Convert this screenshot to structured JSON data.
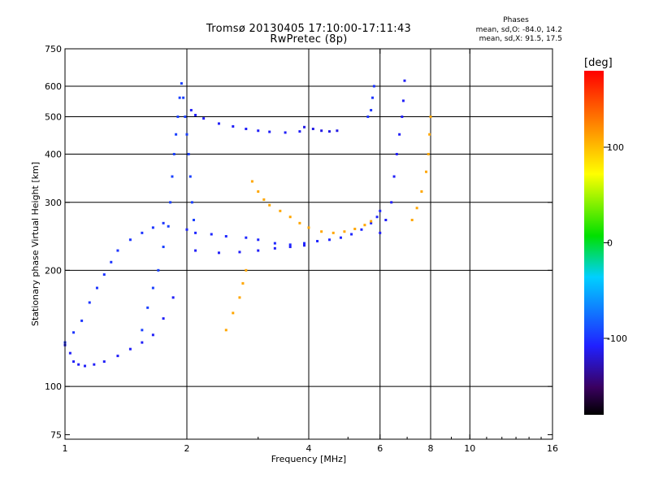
{
  "header": {
    "title_line1": "Tromsø 20130405 17:10:00-17:11:43",
    "title_line2": "RwPretec (8p)",
    "phases_heading": "Phases",
    "phases_line1": "mean, sd,O: -84.0, 14.2",
    "phases_line2": "mean, sd,X:  91.5, 17.5"
  },
  "colorbar": {
    "label": "[deg]",
    "ticks": [
      "100",
      "0",
      "-100"
    ],
    "tick_values": [
      100,
      0,
      -100
    ],
    "range": [
      -180,
      180
    ]
  },
  "colors": {
    "blue_trace": "#1030e0",
    "yellow_trace": "#e8e020",
    "grid": "#000000"
  },
  "chart_data": {
    "type": "scatter",
    "title": "Tromsø 20130405 17:10:00-17:11:43",
    "subtitle": "RwPretec (8p)",
    "xlabel": "Frequency [MHz]",
    "ylabel": "Stationary phase Virtual Height [km]",
    "xscale": "log",
    "yscale": "log",
    "xlim": [
      1,
      16
    ],
    "ylim": [
      73,
      750
    ],
    "xticks": [
      1,
      2,
      4,
      6,
      8,
      10,
      16
    ],
    "xtick_labels": [
      "1",
      "2",
      "4",
      "6",
      "8",
      "10",
      "16"
    ],
    "yticks": [
      75,
      100,
      200,
      300,
      400,
      500,
      600,
      750
    ],
    "ytick_labels": [
      "75",
      "100",
      "200",
      "300",
      "400",
      "500",
      "600",
      "750"
    ],
    "x_gridlines": [
      2,
      4,
      6,
      8,
      10
    ],
    "y_gridlines": [
      100,
      200,
      300,
      400,
      500,
      600
    ],
    "color_scale": "phase [deg]",
    "series": [
      {
        "points": [
          [
            1.0,
            128
          ],
          [
            1.03,
            122
          ],
          [
            1.05,
            116
          ],
          [
            1.08,
            114
          ],
          [
            1.12,
            113
          ],
          [
            1.18,
            114
          ],
          [
            1.25,
            116
          ],
          [
            1.35,
            120
          ],
          [
            1.45,
            125
          ],
          [
            1.55,
            130
          ],
          [
            1.65,
            136
          ],
          [
            1.75,
            150
          ],
          [
            1.85,
            170
          ]
        ],
        "phase": -110
      },
      {
        "points": [
          [
            1.0,
            130
          ],
          [
            1.05,
            138
          ],
          [
            1.1,
            148
          ],
          [
            1.15,
            165
          ],
          [
            1.2,
            180
          ],
          [
            1.25,
            195
          ],
          [
            1.3,
            210
          ],
          [
            1.35,
            225
          ],
          [
            1.45,
            240
          ],
          [
            1.55,
            250
          ],
          [
            1.65,
            258
          ],
          [
            1.75,
            265
          ]
        ],
        "phase": -100
      },
      {
        "points": [
          [
            1.55,
            140
          ],
          [
            1.6,
            160
          ],
          [
            1.65,
            180
          ],
          [
            1.7,
            200
          ],
          [
            1.75,
            230
          ],
          [
            1.8,
            260
          ],
          [
            1.82,
            300
          ],
          [
            1.84,
            350
          ],
          [
            1.86,
            400
          ],
          [
            1.88,
            450
          ],
          [
            1.9,
            500
          ],
          [
            1.92,
            560
          ],
          [
            1.94,
            610
          ],
          [
            1.96,
            560
          ],
          [
            1.98,
            500
          ],
          [
            2.0,
            450
          ],
          [
            2.02,
            400
          ],
          [
            2.04,
            350
          ],
          [
            2.06,
            300
          ],
          [
            2.08,
            270
          ]
        ],
        "phase": -95
      },
      {
        "points": [
          [
            2.05,
            520
          ],
          [
            2.1,
            505
          ],
          [
            2.2,
            495
          ],
          [
            2.4,
            480
          ],
          [
            2.6,
            472
          ],
          [
            2.8,
            465
          ],
          [
            3.0,
            460
          ],
          [
            3.2,
            457
          ],
          [
            3.5,
            455
          ],
          [
            3.8,
            458
          ]
        ],
        "phase": -110
      },
      {
        "points": [
          [
            3.9,
            470
          ],
          [
            4.1,
            465
          ],
          [
            4.3,
            460
          ],
          [
            4.5,
            458
          ],
          [
            4.7,
            460
          ]
        ],
        "phase": -115
      },
      {
        "points": [
          [
            2.0,
            255
          ],
          [
            2.1,
            250
          ],
          [
            2.3,
            248
          ],
          [
            2.5,
            245
          ],
          [
            2.8,
            243
          ],
          [
            3.0,
            240
          ],
          [
            3.3,
            235
          ],
          [
            3.6,
            233
          ],
          [
            3.9,
            235
          ],
          [
            4.2,
            238
          ],
          [
            4.5,
            240
          ],
          [
            4.8,
            243
          ],
          [
            5.1,
            248
          ],
          [
            5.4,
            255
          ],
          [
            5.7,
            265
          ],
          [
            5.9,
            275
          ],
          [
            6.0,
            285
          ]
        ],
        "phase": -105
      },
      {
        "points": [
          [
            2.1,
            225
          ],
          [
            2.4,
            222
          ],
          [
            2.7,
            223
          ],
          [
            3.0,
            225
          ],
          [
            3.3,
            228
          ],
          [
            3.6,
            230
          ],
          [
            3.9,
            232
          ]
        ],
        "phase": -110
      },
      {
        "points": [
          [
            2.9,
            340
          ],
          [
            3.0,
            320
          ],
          [
            3.1,
            305
          ],
          [
            3.2,
            295
          ],
          [
            3.4,
            285
          ],
          [
            3.6,
            275
          ],
          [
            3.8,
            265
          ],
          [
            4.0,
            258
          ],
          [
            4.3,
            252
          ],
          [
            4.6,
            250
          ],
          [
            4.9,
            252
          ],
          [
            5.2,
            256
          ],
          [
            5.5,
            262
          ],
          [
            5.7,
            268
          ]
        ],
        "phase": 110
      },
      {
        "points": [
          [
            2.5,
            140
          ],
          [
            2.6,
            155
          ],
          [
            2.7,
            170
          ],
          [
            2.75,
            185
          ],
          [
            2.8,
            200
          ]
        ],
        "phase": 110
      },
      {
        "points": [
          [
            6.0,
            250
          ],
          [
            6.2,
            270
          ],
          [
            6.4,
            300
          ],
          [
            6.5,
            350
          ],
          [
            6.6,
            400
          ],
          [
            6.7,
            450
          ],
          [
            6.8,
            500
          ],
          [
            6.85,
            550
          ],
          [
            6.9,
            620
          ]
        ],
        "phase": -110
      },
      {
        "points": [
          [
            7.2,
            270
          ],
          [
            7.4,
            290
          ],
          [
            7.6,
            320
          ],
          [
            7.8,
            360
          ],
          [
            7.9,
            400
          ],
          [
            7.95,
            450
          ],
          [
            8.0,
            500
          ]
        ],
        "phase": 110
      },
      {
        "points": [
          [
            5.6,
            500
          ],
          [
            5.7,
            520
          ],
          [
            5.75,
            560
          ],
          [
            5.8,
            600
          ]
        ],
        "phase": -100
      }
    ]
  }
}
